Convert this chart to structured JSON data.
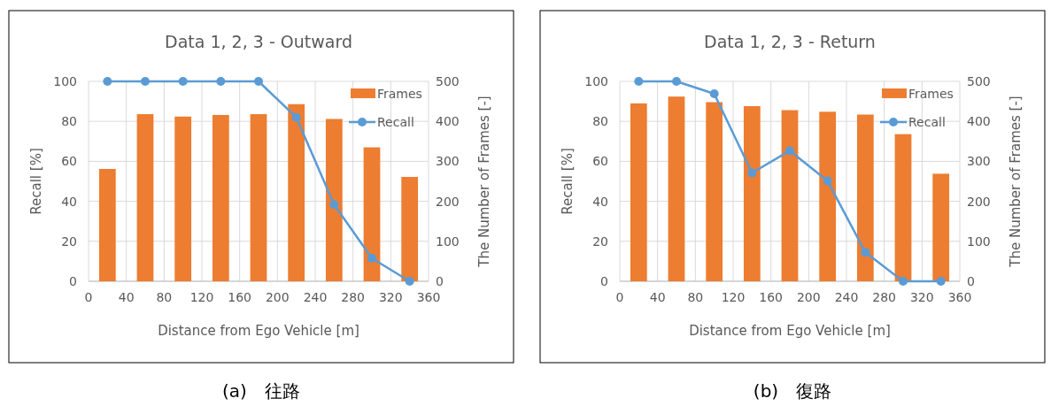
{
  "chart_data": [
    {
      "type": "bar",
      "title": "Data 1, 2, 3 - Outward",
      "xlabel": "Distance from Ego Vehicle [m]",
      "ylabel": "Recall [%]",
      "y2label": "The Number of Frames [-]",
      "x": [
        20,
        60,
        100,
        140,
        180,
        220,
        260,
        300,
        340
      ],
      "xlim": [
        0,
        360
      ],
      "xticks": [
        0,
        40,
        80,
        120,
        160,
        200,
        240,
        280,
        320,
        360
      ],
      "ylim": [
        0,
        100
      ],
      "yticks": [
        0,
        20,
        40,
        60,
        80,
        100
      ],
      "y2lim": [
        0,
        500
      ],
      "y2ticks": [
        0,
        100,
        200,
        300,
        400,
        500
      ],
      "grid": true,
      "legend": "top right",
      "annotations": [
        "(a)　往路"
      ],
      "series": [
        {
          "name": "Frames",
          "axis": "y2",
          "color": "#ed7d31",
          "values": [
            281,
            418,
            412,
            416,
            418,
            443,
            406,
            335,
            261
          ]
        },
        {
          "name": "Recall",
          "type": "line",
          "axis": "y",
          "color": "#5b9bd5",
          "marker": "circle",
          "values": [
            100,
            100,
            100,
            100,
            100,
            82,
            38.4,
            11.5,
            0
          ]
        }
      ]
    },
    {
      "type": "bar",
      "title": "Data 1, 2, 3 - Return",
      "xlabel": "Distance from Ego Vehicle [m]",
      "ylabel": "Recall [%]",
      "y2label": "The Number of Frames [-]",
      "x": [
        20,
        60,
        100,
        140,
        180,
        220,
        260,
        300,
        340
      ],
      "xlim": [
        0,
        360
      ],
      "xticks": [
        0,
        40,
        80,
        120,
        160,
        200,
        240,
        280,
        320,
        360
      ],
      "ylim": [
        0,
        100
      ],
      "yticks": [
        0,
        20,
        40,
        60,
        80,
        100
      ],
      "y2lim": [
        0,
        500
      ],
      "y2ticks": [
        0,
        100,
        200,
        300,
        400,
        500
      ],
      "grid": true,
      "legend": "top right",
      "annotations": [
        "(b)　復路"
      ],
      "series": [
        {
          "name": "Frames",
          "axis": "y2",
          "color": "#ed7d31",
          "values": [
            445,
            462,
            448,
            438,
            428,
            424,
            417,
            368,
            269
          ]
        },
        {
          "name": "Recall",
          "type": "line",
          "axis": "y",
          "color": "#5b9bd5",
          "marker": "circle",
          "values": [
            100,
            100,
            93.8,
            54.2,
            65.3,
            50.2,
            14.5,
            0,
            0
          ]
        }
      ]
    }
  ]
}
